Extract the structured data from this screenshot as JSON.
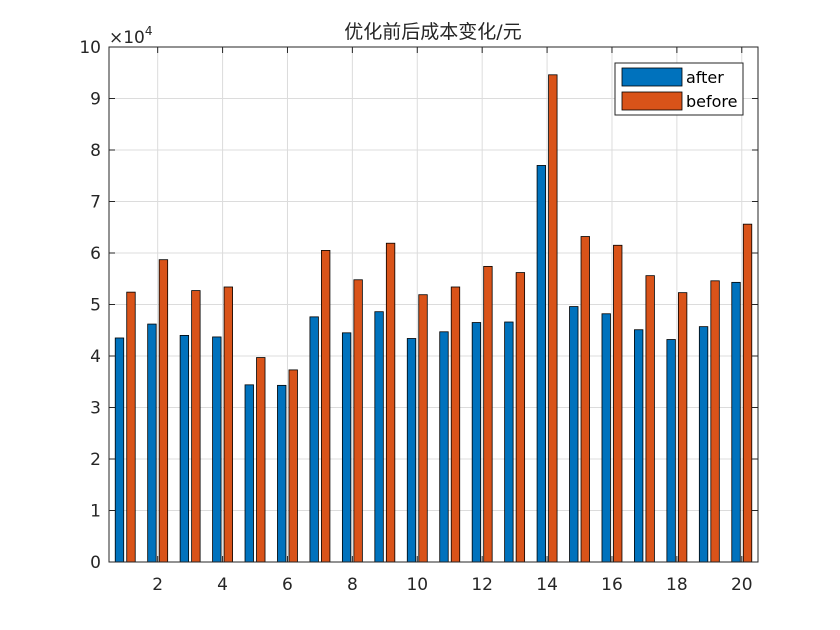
{
  "chart_data": {
    "type": "bar",
    "title": "优化前后成本变化/元",
    "xlabel": "",
    "ylabel": "",
    "x": [
      1,
      2,
      3,
      4,
      5,
      6,
      7,
      8,
      9,
      10,
      11,
      12,
      13,
      14,
      15,
      16,
      17,
      18,
      19,
      20
    ],
    "xticks": [
      2,
      4,
      6,
      8,
      10,
      12,
      14,
      16,
      18,
      20
    ],
    "xlim": [
      0.5,
      20.5
    ],
    "ylim": [
      0,
      10
    ],
    "yticks": [
      0,
      1,
      2,
      3,
      4,
      5,
      6,
      7,
      8,
      9,
      10
    ],
    "y_multiplier": {
      "base": "×10",
      "exponent": "4"
    },
    "grid": true,
    "legend_position": "top-right",
    "series": [
      {
        "name": "after",
        "color": "#0072BD",
        "values": [
          4.35,
          4.62,
          4.4,
          4.37,
          3.44,
          3.43,
          4.76,
          4.45,
          4.86,
          4.34,
          4.47,
          4.65,
          4.66,
          7.7,
          4.96,
          4.82,
          4.51,
          4.32,
          4.57,
          5.43
        ]
      },
      {
        "name": "before",
        "color": "#D95319",
        "values": [
          5.24,
          5.87,
          5.27,
          5.34,
          3.97,
          3.73,
          6.05,
          5.48,
          6.19,
          5.19,
          5.34,
          5.74,
          5.62,
          9.46,
          6.32,
          6.15,
          5.56,
          5.23,
          5.46,
          6.56
        ]
      }
    ]
  }
}
